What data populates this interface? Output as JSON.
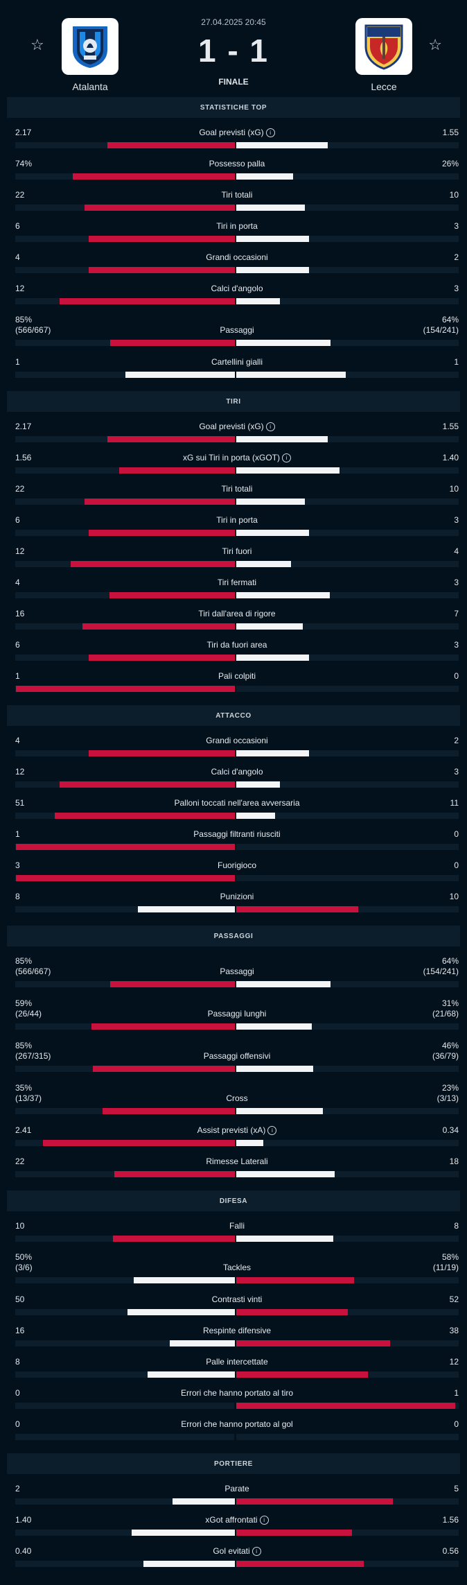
{
  "match": {
    "datetime": "27.04.2025 20:45",
    "score": "1 - 1",
    "status": "FINALE",
    "home_team": "Atalanta",
    "away_team": "Lecce",
    "favorite_icon": "star-icon"
  },
  "colors": {
    "background": "#03111d",
    "home_bar": "#c8113c",
    "away_bar": "#f2f4f5",
    "track": "#0c1d2b"
  },
  "sections": [
    {
      "title": "STATISTICHE TOP",
      "stats": [
        {
          "label": "Goal previsti (xG)",
          "info": true,
          "home": "2.17",
          "away": "1.55",
          "home_num": 2.17,
          "away_num": 1.55,
          "leader": "home"
        },
        {
          "label": "Possesso palla",
          "home": "74%",
          "away": "26%",
          "home_num": 74,
          "away_num": 26,
          "leader": "home"
        },
        {
          "label": "Tiri totali",
          "home": "22",
          "away": "10",
          "home_num": 22,
          "away_num": 10,
          "leader": "home"
        },
        {
          "label": "Tiri in porta",
          "home": "6",
          "away": "3",
          "home_num": 6,
          "away_num": 3,
          "leader": "home"
        },
        {
          "label": "Grandi occasioni",
          "home": "4",
          "away": "2",
          "home_num": 4,
          "away_num": 2,
          "leader": "home"
        },
        {
          "label": "Calci d'angolo",
          "home": "12",
          "away": "3",
          "home_num": 12,
          "away_num": 3,
          "leader": "home"
        },
        {
          "label": "Passaggi",
          "home": "85%",
          "home_sub": "(566/667)",
          "away": "64%",
          "away_sub": "(154/241)",
          "home_num": 85,
          "away_num": 64,
          "leader": "home"
        },
        {
          "label": "Cartellini gialli",
          "home": "1",
          "away": "1",
          "home_num": 1,
          "away_num": 1,
          "leader": "none"
        }
      ]
    },
    {
      "title": "TIRI",
      "stats": [
        {
          "label": "Goal previsti (xG)",
          "info": true,
          "home": "2.17",
          "away": "1.55",
          "home_num": 2.17,
          "away_num": 1.55,
          "leader": "home"
        },
        {
          "label": "xG sui Tiri in porta (xGOT)",
          "info": true,
          "home": "1.56",
          "away": "1.40",
          "home_num": 1.56,
          "away_num": 1.4,
          "leader": "home"
        },
        {
          "label": "Tiri totali",
          "home": "22",
          "away": "10",
          "home_num": 22,
          "away_num": 10,
          "leader": "home"
        },
        {
          "label": "Tiri in porta",
          "home": "6",
          "away": "3",
          "home_num": 6,
          "away_num": 3,
          "leader": "home"
        },
        {
          "label": "Tiri fuori",
          "home": "12",
          "away": "4",
          "home_num": 12,
          "away_num": 4,
          "leader": "home"
        },
        {
          "label": "Tiri fermati",
          "home": "4",
          "away": "3",
          "home_num": 4,
          "away_num": 3,
          "leader": "home"
        },
        {
          "label": "Tiri dall'area di rigore",
          "home": "16",
          "away": "7",
          "home_num": 16,
          "away_num": 7,
          "leader": "home"
        },
        {
          "label": "Tiri da fuori area",
          "home": "6",
          "away": "3",
          "home_num": 6,
          "away_num": 3,
          "leader": "home"
        },
        {
          "label": "Pali colpiti",
          "home": "1",
          "away": "0",
          "home_num": 1,
          "away_num": 0,
          "leader": "home"
        }
      ]
    },
    {
      "title": "ATTACCO",
      "stats": [
        {
          "label": "Grandi occasioni",
          "home": "4",
          "away": "2",
          "home_num": 4,
          "away_num": 2,
          "leader": "home"
        },
        {
          "label": "Calci d'angolo",
          "home": "12",
          "away": "3",
          "home_num": 12,
          "away_num": 3,
          "leader": "home"
        },
        {
          "label": "Palloni toccati nell'area avversaria",
          "home": "51",
          "away": "11",
          "home_num": 51,
          "away_num": 11,
          "leader": "home"
        },
        {
          "label": "Passaggi filtranti riusciti",
          "home": "1",
          "away": "0",
          "home_num": 1,
          "away_num": 0,
          "leader": "home"
        },
        {
          "label": "Fuorigioco",
          "home": "3",
          "away": "0",
          "home_num": 3,
          "away_num": 0,
          "leader": "home"
        },
        {
          "label": "Punizioni",
          "home": "8",
          "away": "10",
          "home_num": 8,
          "away_num": 10,
          "leader": "away"
        }
      ]
    },
    {
      "title": "PASSAGGI",
      "stats": [
        {
          "label": "Passaggi",
          "home": "85%",
          "home_sub": "(566/667)",
          "away": "64%",
          "away_sub": "(154/241)",
          "home_num": 85,
          "away_num": 64,
          "leader": "home"
        },
        {
          "label": "Passaggi lunghi",
          "home": "59%",
          "home_sub": "(26/44)",
          "away": "31%",
          "away_sub": "(21/68)",
          "home_num": 59,
          "away_num": 31,
          "leader": "home"
        },
        {
          "label": "Passaggi offensivi",
          "home": "85%",
          "home_sub": "(267/315)",
          "away": "46%",
          "away_sub": "(36/79)",
          "home_num": 85,
          "away_num": 46,
          "leader": "home"
        },
        {
          "label": "Cross",
          "home": "35%",
          "home_sub": "(13/37)",
          "away": "23%",
          "away_sub": "(3/13)",
          "home_num": 35,
          "away_num": 23,
          "leader": "home"
        },
        {
          "label": "Assist previsti (xA)",
          "info": true,
          "home": "2.41",
          "away": "0.34",
          "home_num": 2.41,
          "away_num": 0.34,
          "leader": "home"
        },
        {
          "label": "Rimesse Laterali",
          "home": "22",
          "away": "18",
          "home_num": 22,
          "away_num": 18,
          "leader": "home"
        }
      ]
    },
    {
      "title": "DIFESA",
      "stats": [
        {
          "label": "Falli",
          "home": "10",
          "away": "8",
          "home_num": 10,
          "away_num": 8,
          "leader": "home"
        },
        {
          "label": "Tackles",
          "home": "50%",
          "home_sub": "(3/6)",
          "away": "58%",
          "away_sub": "(11/19)",
          "home_num": 50,
          "away_num": 58,
          "leader": "away"
        },
        {
          "label": "Contrasti vinti",
          "home": "50",
          "away": "52",
          "home_num": 50,
          "away_num": 52,
          "leader": "away"
        },
        {
          "label": "Respinte difensive",
          "home": "16",
          "away": "38",
          "home_num": 16,
          "away_num": 38,
          "leader": "away"
        },
        {
          "label": "Palle intercettate",
          "home": "8",
          "away": "12",
          "home_num": 8,
          "away_num": 12,
          "leader": "away"
        },
        {
          "label": "Errori che hanno portato al tiro",
          "home": "0",
          "away": "1",
          "home_num": 0,
          "away_num": 1,
          "leader": "away"
        },
        {
          "label": "Errori che hanno portato al gol",
          "home": "0",
          "away": "0",
          "home_num": 0,
          "away_num": 0,
          "leader": "none"
        }
      ]
    },
    {
      "title": "PORTIERE",
      "stats": [
        {
          "label": "Parate",
          "home": "2",
          "away": "5",
          "home_num": 2,
          "away_num": 5,
          "leader": "away"
        },
        {
          "label": "xGot affrontati",
          "info": true,
          "home": "1.40",
          "away": "1.56",
          "home_num": 1.4,
          "away_num": 1.56,
          "leader": "away"
        },
        {
          "label": "Gol evitati",
          "info": true,
          "home": "0.40",
          "away": "0.56",
          "home_num": 0.4,
          "away_num": 0.56,
          "leader": "away"
        }
      ]
    }
  ]
}
